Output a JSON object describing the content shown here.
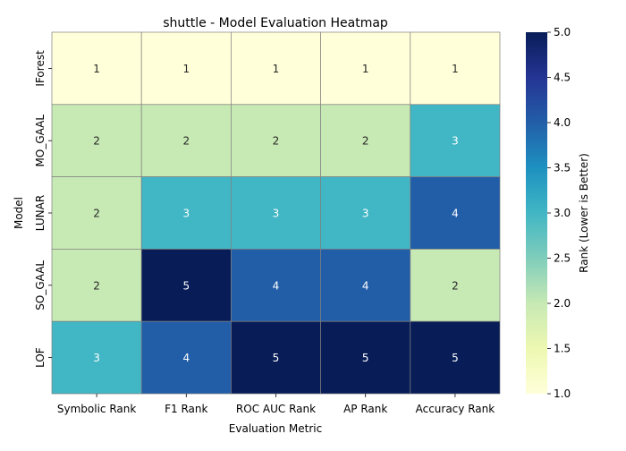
{
  "chart_data": {
    "type": "heatmap",
    "title": "shuttle - Model Evaluation Heatmap",
    "xlabel": "Evaluation Metric",
    "ylabel": "Model",
    "columns": [
      "Symbolic Rank",
      "F1 Rank",
      "ROC AUC Rank",
      "AP Rank",
      "Accuracy Rank"
    ],
    "rows": [
      "IForest",
      "MO_GAAL",
      "LUNAR",
      "SO_GAAL",
      "LOF"
    ],
    "values": [
      [
        1,
        1,
        1,
        1,
        1
      ],
      [
        2,
        2,
        2,
        2,
        3
      ],
      [
        2,
        3,
        3,
        3,
        4
      ],
      [
        2,
        5,
        4,
        4,
        2
      ],
      [
        3,
        4,
        5,
        5,
        5
      ]
    ],
    "colorbar": {
      "label": "Rank (Lower is Better)",
      "range": [
        1.0,
        5.0
      ],
      "ticks": [
        "1.0",
        "1.5",
        "2.0",
        "2.5",
        "3.0",
        "3.5",
        "4.0",
        "4.5",
        "5.0"
      ],
      "colormap": "YlGnBu",
      "colors": {
        "1": "#ffffd9",
        "2": "#c7e9b4",
        "3": "#41b6c4",
        "4": "#225ea8",
        "5": "#081d58"
      }
    },
    "annotation_colors": {
      "light_cells": "#262626",
      "dark_cells": "#ffffff"
    },
    "grid_line_color": "#808080"
  }
}
